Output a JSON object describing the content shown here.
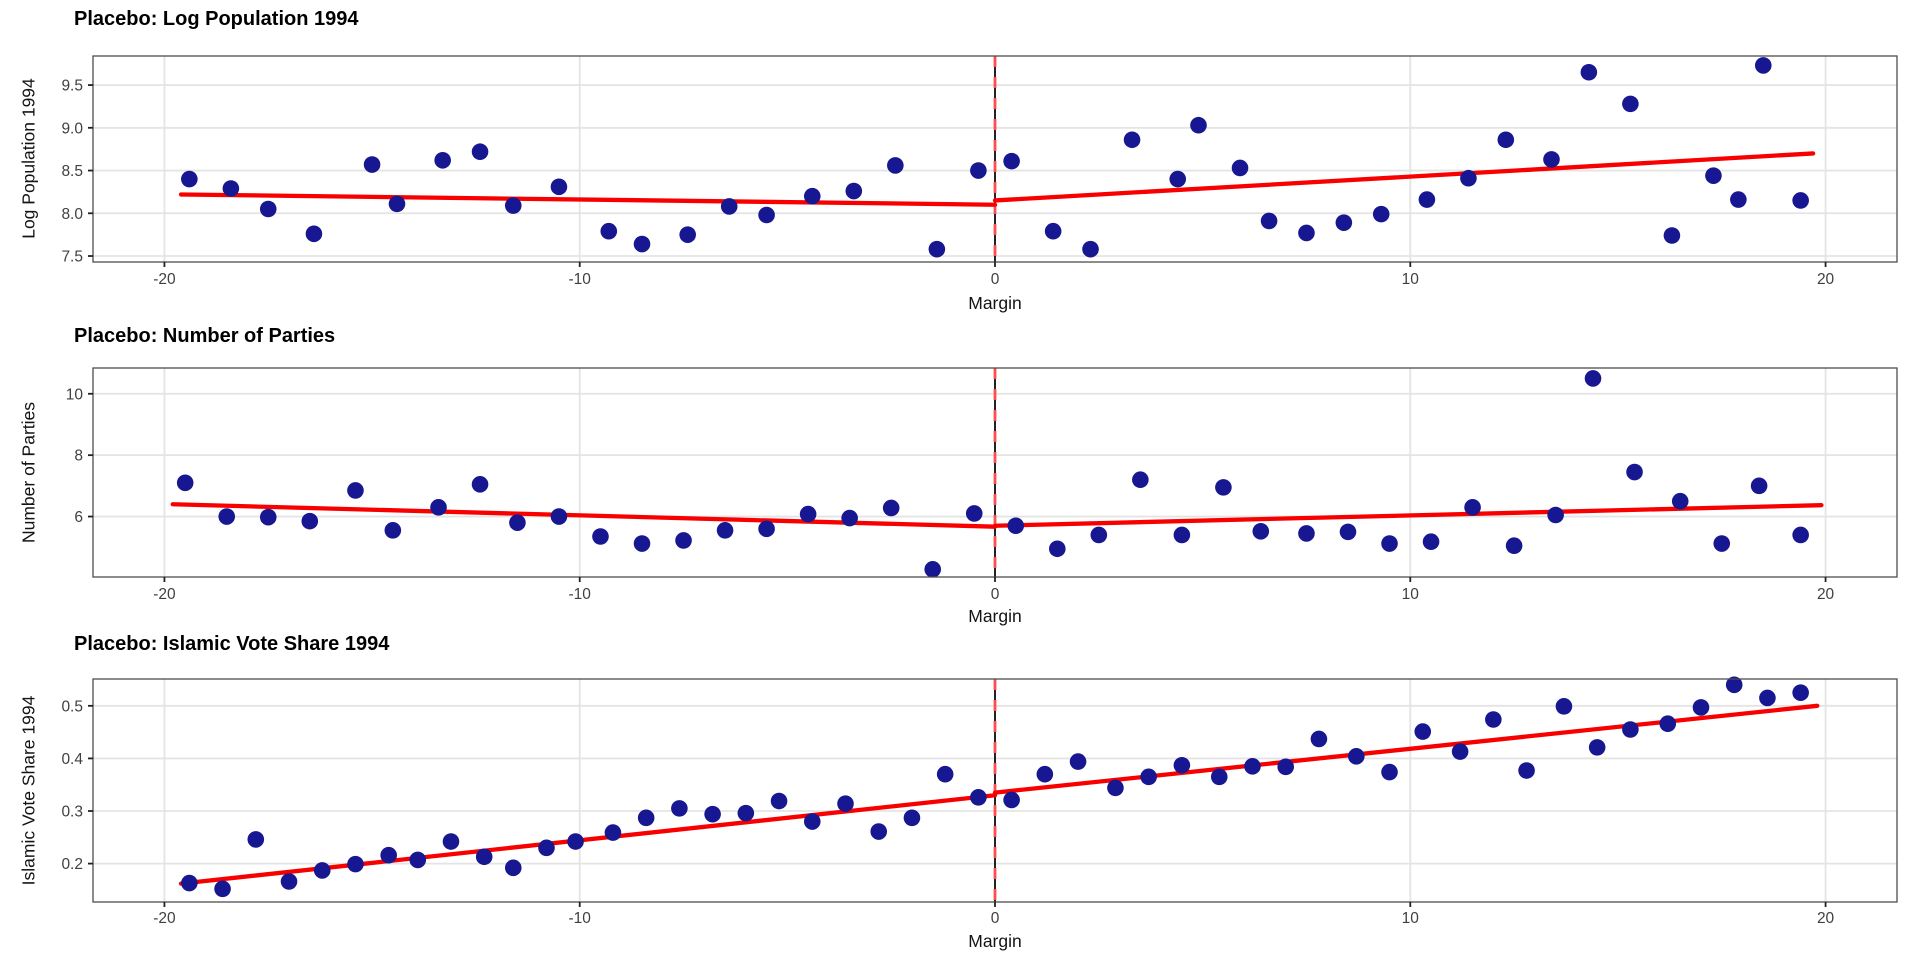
{
  "page": {
    "background": "#ffffff"
  },
  "style": {
    "point_color": "#171791",
    "fit_line_color": "#F90000",
    "cutoff_solid_color": "#000000",
    "cutoff_dash_color": "#FF4D4D",
    "grid_color": "#E4E4E4",
    "border_color": "#4D4D4D",
    "tick_text_color": "#404040",
    "tick_mark_color": "#222222"
  },
  "chart_data": [
    {
      "type": "scatter",
      "title": "Placebo: Log Population 1994",
      "ylabel": "Log Population 1994",
      "xlabel": "Margin",
      "x_range": [
        -21.72,
        21.72
      ],
      "y_range": [
        7.43,
        9.84
      ],
      "x_ticks": [
        -20,
        -10,
        0,
        10,
        20
      ],
      "x_tick_labels": [
        "-20",
        "-10",
        "0",
        "10",
        "20"
      ],
      "y_ticks": [
        7.5,
        8.0,
        8.5,
        9.0,
        9.5
      ],
      "y_tick_labels": [
        "7.5",
        "8.0",
        "8.5",
        "9.0",
        "9.5"
      ],
      "grid": true,
      "legend": "none",
      "cutoff_x": 0,
      "points": [
        [
          -19.4,
          8.4
        ],
        [
          -18.4,
          8.29
        ],
        [
          -17.5,
          8.05
        ],
        [
          -16.4,
          7.76
        ],
        [
          -15.0,
          8.57
        ],
        [
          -14.4,
          8.11
        ],
        [
          -13.3,
          8.62
        ],
        [
          -12.4,
          8.72
        ],
        [
          -11.6,
          8.09
        ],
        [
          -10.5,
          8.31
        ],
        [
          -9.3,
          7.79
        ],
        [
          -8.5,
          7.64
        ],
        [
          -7.4,
          7.75
        ],
        [
          -6.4,
          8.08
        ],
        [
          -5.5,
          7.98
        ],
        [
          -4.4,
          8.2
        ],
        [
          -3.4,
          8.26
        ],
        [
          -2.4,
          8.56
        ],
        [
          -1.4,
          7.58
        ],
        [
          -0.4,
          8.5
        ],
        [
          0.4,
          8.61
        ],
        [
          1.4,
          7.79
        ],
        [
          2.3,
          7.58
        ],
        [
          3.3,
          8.86
        ],
        [
          4.4,
          8.4
        ],
        [
          4.9,
          9.03
        ],
        [
          5.9,
          8.53
        ],
        [
          6.6,
          7.91
        ],
        [
          7.5,
          7.77
        ],
        [
          8.4,
          7.89
        ],
        [
          9.3,
          7.99
        ],
        [
          10.4,
          8.16
        ],
        [
          11.4,
          8.41
        ],
        [
          12.3,
          8.86
        ],
        [
          13.4,
          8.63
        ],
        [
          14.3,
          9.65
        ],
        [
          15.3,
          9.28
        ],
        [
          16.3,
          7.74
        ],
        [
          17.3,
          8.44
        ],
        [
          17.9,
          8.16
        ],
        [
          18.5,
          9.73
        ],
        [
          19.4,
          8.15
        ]
      ],
      "fit_left": [
        [
          -19.6,
          8.22
        ],
        [
          0,
          8.1
        ]
      ],
      "fit_right": [
        [
          0,
          8.15
        ],
        [
          19.7,
          8.7
        ]
      ]
    },
    {
      "type": "scatter",
      "title": "Placebo: Number of Parties",
      "ylabel": "Number of Parties",
      "xlabel": "Margin",
      "x_range": [
        -21.72,
        21.72
      ],
      "y_range": [
        4.03,
        10.84
      ],
      "x_ticks": [
        -20,
        -10,
        0,
        10,
        20
      ],
      "x_tick_labels": [
        "-20",
        "-10",
        "0",
        "10",
        "20"
      ],
      "y_ticks": [
        6,
        8,
        10
      ],
      "y_tick_labels": [
        "6",
        "8",
        "10"
      ],
      "grid": true,
      "legend": "none",
      "cutoff_x": 0,
      "points": [
        [
          -19.5,
          7.1
        ],
        [
          -18.5,
          6.0
        ],
        [
          -17.5,
          5.98
        ],
        [
          -16.5,
          5.85
        ],
        [
          -15.4,
          6.85
        ],
        [
          -14.5,
          5.55
        ],
        [
          -13.4,
          6.3
        ],
        [
          -12.4,
          7.05
        ],
        [
          -11.5,
          5.8
        ],
        [
          -10.5,
          6.0
        ],
        [
          -9.5,
          5.35
        ],
        [
          -8.5,
          5.12
        ],
        [
          -7.5,
          5.22
        ],
        [
          -6.5,
          5.55
        ],
        [
          -5.5,
          5.6
        ],
        [
          -4.5,
          6.08
        ],
        [
          -3.5,
          5.95
        ],
        [
          -2.5,
          6.28
        ],
        [
          -1.5,
          4.28
        ],
        [
          -0.5,
          6.1
        ],
        [
          0.5,
          5.7
        ],
        [
          1.5,
          4.95
        ],
        [
          2.5,
          5.4
        ],
        [
          3.5,
          7.2
        ],
        [
          4.5,
          5.4
        ],
        [
          5.5,
          6.95
        ],
        [
          6.4,
          5.52
        ],
        [
          7.5,
          5.45
        ],
        [
          8.5,
          5.5
        ],
        [
          9.5,
          5.12
        ],
        [
          10.5,
          5.18
        ],
        [
          11.5,
          6.3
        ],
        [
          12.5,
          5.05
        ],
        [
          13.5,
          6.05
        ],
        [
          14.4,
          10.5
        ],
        [
          15.4,
          7.45
        ],
        [
          16.5,
          6.5
        ],
        [
          17.5,
          5.12
        ],
        [
          18.4,
          7.0
        ],
        [
          19.4,
          5.4
        ]
      ],
      "fit_left": [
        [
          -19.8,
          6.4
        ],
        [
          0,
          5.67
        ]
      ],
      "fit_right": [
        [
          0,
          5.7
        ],
        [
          19.9,
          6.37
        ]
      ]
    },
    {
      "type": "scatter",
      "title": "Placebo: Islamic Vote Share 1994",
      "ylabel": "Islamic Vote Share 1994",
      "xlabel": "Margin",
      "x_range": [
        -21.72,
        21.72
      ],
      "y_range": [
        0.127,
        0.551
      ],
      "x_ticks": [
        -20,
        -10,
        0,
        10,
        20
      ],
      "x_tick_labels": [
        "-20",
        "-10",
        "0",
        "10",
        "20"
      ],
      "y_ticks": [
        0.2,
        0.3,
        0.4,
        0.5
      ],
      "y_tick_labels": [
        "0.2",
        "0.3",
        "0.4",
        "0.5"
      ],
      "grid": true,
      "legend": "none",
      "cutoff_x": 0,
      "points": [
        [
          -19.4,
          0.163
        ],
        [
          -18.6,
          0.152
        ],
        [
          -17.8,
          0.246
        ],
        [
          -17.0,
          0.166
        ],
        [
          -16.2,
          0.187
        ],
        [
          -15.4,
          0.199
        ],
        [
          -14.6,
          0.216
        ],
        [
          -13.9,
          0.207
        ],
        [
          -13.1,
          0.242
        ],
        [
          -12.3,
          0.213
        ],
        [
          -11.6,
          0.192
        ],
        [
          -10.8,
          0.23
        ],
        [
          -10.1,
          0.242
        ],
        [
          -9.2,
          0.259
        ],
        [
          -8.4,
          0.287
        ],
        [
          -7.6,
          0.305
        ],
        [
          -6.8,
          0.294
        ],
        [
          -6.0,
          0.296
        ],
        [
          -5.2,
          0.319
        ],
        [
          -4.4,
          0.28
        ],
        [
          -3.6,
          0.314
        ],
        [
          -2.8,
          0.261
        ],
        [
          -2.0,
          0.287
        ],
        [
          -1.2,
          0.37
        ],
        [
          -0.4,
          0.326
        ],
        [
          0.4,
          0.321
        ],
        [
          1.2,
          0.37
        ],
        [
          2.0,
          0.394
        ],
        [
          2.9,
          0.344
        ],
        [
          3.7,
          0.365
        ],
        [
          4.5,
          0.387
        ],
        [
          5.4,
          0.365
        ],
        [
          6.2,
          0.385
        ],
        [
          7.0,
          0.384
        ],
        [
          7.8,
          0.437
        ],
        [
          8.7,
          0.404
        ],
        [
          9.5,
          0.374
        ],
        [
          10.3,
          0.451
        ],
        [
          11.2,
          0.413
        ],
        [
          12.0,
          0.474
        ],
        [
          12.8,
          0.377
        ],
        [
          13.7,
          0.499
        ],
        [
          14.5,
          0.421
        ],
        [
          15.3,
          0.455
        ],
        [
          16.2,
          0.466
        ],
        [
          17.0,
          0.497
        ],
        [
          17.8,
          0.54
        ],
        [
          18.6,
          0.515
        ],
        [
          19.4,
          0.525
        ]
      ],
      "fit_left": [
        [
          -19.6,
          0.162
        ],
        [
          0,
          0.33
        ]
      ],
      "fit_right": [
        [
          0,
          0.335
        ],
        [
          19.8,
          0.5
        ]
      ]
    }
  ]
}
